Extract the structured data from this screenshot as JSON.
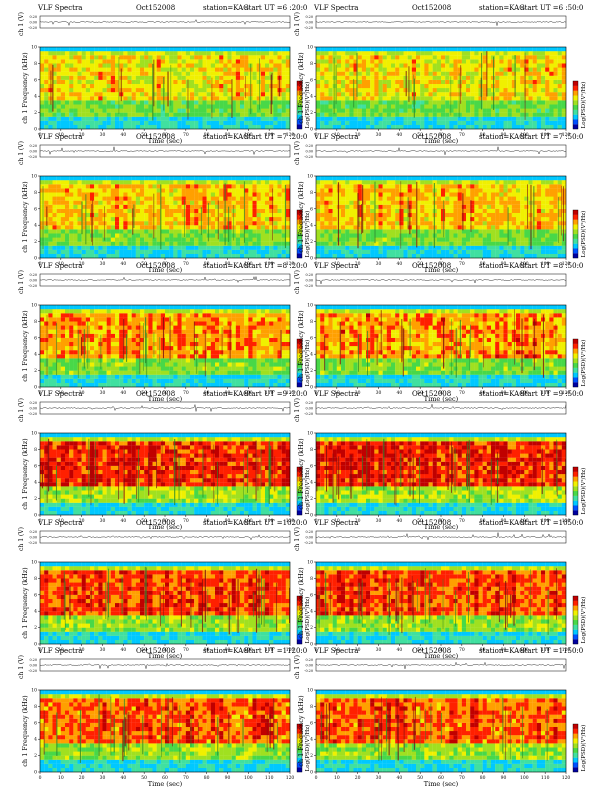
{
  "chart_data": [
    {
      "type": "heatmap",
      "title": "VLF Spectra",
      "date": "Oct152008",
      "station": "station=KAG",
      "start_ut": "start  UT =6 :20:0",
      "xlabel": "Time  (sec)",
      "ylabel_top": "ch 1 (V)",
      "ylabel_spec": "ch 1 Frequency (kHz)",
      "colorbar_label": "Log(PSD)(V²/Hz)",
      "x_ticks": [
        0,
        10,
        20,
        30,
        40,
        50,
        60,
        70,
        80,
        90,
        100,
        110,
        120
      ],
      "y_ticks": [
        0,
        2,
        4,
        6,
        8,
        10
      ],
      "ts_ticks": [
        "0.00",
        "0.20",
        "-0.20"
      ],
      "xlim": [
        0,
        120
      ],
      "ylim": [
        0,
        10
      ],
      "intensity": 0.25
    },
    {
      "type": "heatmap",
      "title": "VLF Spectra",
      "date": "Oct152008",
      "station": "station=KAG",
      "start_ut": "start  UT =6 :50:0",
      "xlabel": "Time  (sec)",
      "ylabel_top": "ch 1 (V)",
      "ylabel_spec": "ch 1 Frequency (kHz)",
      "colorbar_label": "Log(PSD)(V²/Hz)",
      "x_ticks": [
        0,
        10,
        20,
        30,
        40,
        50,
        60,
        70,
        80,
        90,
        100,
        110,
        120
      ],
      "y_ticks": [
        0,
        2,
        4,
        6,
        8,
        10
      ],
      "ts_ticks": [
        "0.00",
        "0.20",
        "-0.20"
      ],
      "xlim": [
        0,
        120
      ],
      "ylim": [
        0,
        10
      ],
      "intensity": 0.25
    },
    {
      "type": "heatmap",
      "title": "VLF Spectra",
      "date": "Oct152008",
      "station": "station=KAG",
      "start_ut": "start  UT =7 :20:0",
      "xlabel": "Time  (sec)",
      "ylabel_top": "ch 1 (V)",
      "ylabel_spec": "ch 1 Frequency (kHz)",
      "colorbar_label": "Log(PSD)(V²/Hz)",
      "x_ticks": [
        0,
        10,
        20,
        30,
        40,
        50,
        60,
        70,
        80,
        90,
        100,
        110,
        120
      ],
      "y_ticks": [
        0,
        2,
        4,
        6,
        8,
        10
      ],
      "ts_ticks": [
        "0.00",
        "0.20",
        "-0.20"
      ],
      "xlim": [
        0,
        120
      ],
      "ylim": [
        0,
        10
      ],
      "intensity": 0.35
    },
    {
      "type": "heatmap",
      "title": "VLF Spectra",
      "date": "Oct152008",
      "station": "station=KAG",
      "start_ut": "start  UT =7 :50:0",
      "xlabel": "Time  (sec)",
      "ylabel_top": "ch 1 (V)",
      "ylabel_spec": "ch 1 Frequency (kHz)",
      "colorbar_label": "Log(PSD)(V²/Hz)",
      "x_ticks": [
        0,
        10,
        20,
        30,
        40,
        50,
        60,
        70,
        80,
        90,
        100,
        110,
        120
      ],
      "y_ticks": [
        0,
        2,
        4,
        6,
        8,
        10
      ],
      "ts_ticks": [
        "0.00",
        "0.20",
        "-0.20"
      ],
      "xlim": [
        0,
        120
      ],
      "ylim": [
        0,
        10
      ],
      "intensity": 0.35
    },
    {
      "type": "heatmap",
      "title": "VLF Spectra",
      "date": "Oct152008",
      "station": "station=KAG",
      "start_ut": "start  UT =8 :20:0",
      "xlabel": "Time  (sec)",
      "ylabel_top": "ch 1 (V)",
      "ylabel_spec": "ch 1 Frequency (kHz)",
      "colorbar_label": "Log(PSD)(V²/Hz)",
      "x_ticks": [
        0,
        10,
        20,
        30,
        40,
        50,
        60,
        70,
        80,
        90,
        100,
        110,
        120
      ],
      "y_ticks": [
        0,
        2,
        4,
        6,
        8,
        10
      ],
      "ts_ticks": [
        "0.00",
        "0.20",
        "-0.20"
      ],
      "xlim": [
        0,
        120
      ],
      "ylim": [
        0,
        10
      ],
      "intensity": 0.45
    },
    {
      "type": "heatmap",
      "title": "VLF Spectra",
      "date": "Oct152008",
      "station": "station=KAG",
      "start_ut": "start  UT =8 :50:0",
      "xlabel": "Time  (sec)",
      "ylabel_top": "ch 1 (V)",
      "ylabel_spec": "ch 1 Frequency (kHz)",
      "colorbar_label": "Log(PSD)(V²/Hz)",
      "x_ticks": [
        0,
        10,
        20,
        30,
        40,
        50,
        60,
        70,
        80,
        90,
        100,
        110,
        120
      ],
      "y_ticks": [
        0,
        2,
        4,
        6,
        8,
        10
      ],
      "ts_ticks": [
        "0.00",
        "0.20",
        "-0.20"
      ],
      "xlim": [
        0,
        120
      ],
      "ylim": [
        0,
        10
      ],
      "intensity": 0.45
    },
    {
      "type": "heatmap",
      "title": "VLF Spectra",
      "date": "Oct152008",
      "station": "station=KAG",
      "start_ut": "start  UT =9 :20:0",
      "xlabel": "Time  (sec)",
      "ylabel_top": "ch 1 (V)",
      "ylabel_spec": "ch 1 Frequency (kHz)",
      "colorbar_label": "Log(PSD)(V²/Hz)",
      "x_ticks": [
        0,
        10,
        20,
        30,
        40,
        50,
        60,
        70,
        80,
        90,
        100,
        110,
        120
      ],
      "y_ticks": [
        0,
        2,
        4,
        6,
        8,
        10
      ],
      "ts_ticks": [
        "0.00",
        "0.20",
        "-0.20"
      ],
      "xlim": [
        0,
        120
      ],
      "ylim": [
        0,
        10
      ],
      "intensity": 0.75
    },
    {
      "type": "heatmap",
      "title": "VLF Spectra",
      "date": "Oct152008",
      "station": "station=KAG",
      "start_ut": "start  UT =9 :50:0",
      "xlabel": "Time  (sec)",
      "ylabel_top": "ch 1 (V)",
      "ylabel_spec": "ch 1 Frequency (kHz)",
      "colorbar_label": "Log(PSD)(V²/Hz)",
      "x_ticks": [
        0,
        10,
        20,
        30,
        40,
        50,
        60,
        70,
        80,
        90,
        100,
        110,
        120
      ],
      "y_ticks": [
        0,
        2,
        4,
        6,
        8,
        10
      ],
      "ts_ticks": [
        "0.00",
        "0.20",
        "-0.20"
      ],
      "xlim": [
        0,
        120
      ],
      "ylim": [
        0,
        10
      ],
      "intensity": 0.75
    },
    {
      "type": "heatmap",
      "title": "VLF Spectra",
      "date": "Oct152008",
      "station": "station=KAG",
      "start_ut": "start  UT =1020:0",
      "xlabel": "Time  (sec)",
      "ylabel_top": "ch 1 (V)",
      "ylabel_spec": "ch 1 Frequency (kHz)",
      "colorbar_label": "Log(PSD)(V²/Hz)",
      "x_ticks": [
        0,
        10,
        20,
        30,
        40,
        50,
        60,
        70,
        80,
        90,
        100,
        110,
        120
      ],
      "y_ticks": [
        0,
        2,
        4,
        6,
        8,
        10
      ],
      "ts_ticks": [
        "0.00",
        "0.20",
        "-0.20"
      ],
      "xlim": [
        0,
        120
      ],
      "ylim": [
        0,
        10
      ],
      "intensity": 0.65
    },
    {
      "type": "heatmap",
      "title": "VLF Spectra",
      "date": "Oct152008",
      "station": "station=KAG",
      "start_ut": "start  UT =1050:0",
      "xlabel": "Time  (sec)",
      "ylabel_top": "ch 1 (V)",
      "ylabel_spec": "ch 1 Frequency (kHz)",
      "colorbar_label": "Log(PSD)(V²/Hz)",
      "x_ticks": [
        0,
        10,
        20,
        30,
        40,
        50,
        60,
        70,
        80,
        90,
        100,
        110,
        120
      ],
      "y_ticks": [
        0,
        2,
        4,
        6,
        8,
        10
      ],
      "ts_ticks": [
        "0.00",
        "0.20",
        "-0.20"
      ],
      "xlim": [
        0,
        120
      ],
      "ylim": [
        0,
        10
      ],
      "intensity": 0.65
    },
    {
      "type": "heatmap",
      "title": "VLF Spectra",
      "date": "Oct152008",
      "station": "station=KAG",
      "start_ut": "start  UT =1120:0",
      "xlabel": "Time  (sec)",
      "ylabel_top": "ch 1 (V)",
      "ylabel_spec": "ch 1 Frequency (kHz)",
      "colorbar_label": "Log(PSD)(V²/Hz)",
      "x_ticks": [
        0,
        10,
        20,
        30,
        40,
        50,
        60,
        70,
        80,
        90,
        100,
        110,
        120
      ],
      "y_ticks": [
        0,
        2,
        4,
        6,
        8,
        10
      ],
      "ts_ticks": [
        "0.00",
        "0.20",
        "-0.20"
      ],
      "xlim": [
        0,
        120
      ],
      "ylim": [
        0,
        10
      ],
      "intensity": 0.6
    },
    {
      "type": "heatmap",
      "title": "VLF Spectra",
      "date": "Oct152008",
      "station": "station=KAG",
      "start_ut": "start  UT =1150:0",
      "xlabel": "Time  (sec)",
      "ylabel_top": "ch 1 (V)",
      "ylabel_spec": "ch 1 Frequency (kHz)",
      "colorbar_label": "Log(PSD)(V²/Hz)",
      "x_ticks": [
        0,
        10,
        20,
        30,
        40,
        50,
        60,
        70,
        80,
        90,
        100,
        110,
        120
      ],
      "y_ticks": [
        0,
        2,
        4,
        6,
        8,
        10
      ],
      "ts_ticks": [
        "0.00",
        "0.20",
        "-0.20"
      ],
      "xlim": [
        0,
        120
      ],
      "ylim": [
        0,
        10
      ],
      "intensity": 0.6
    }
  ],
  "colormap": [
    "#0000a0",
    "#0050ff",
    "#00c8ff",
    "#40e0a0",
    "#48d848",
    "#a0e020",
    "#f0f000",
    "#ffa000",
    "#ff2000",
    "#c00000"
  ]
}
